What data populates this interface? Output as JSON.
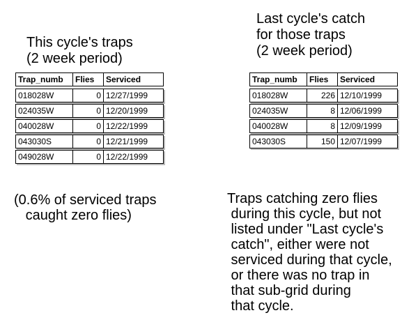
{
  "left": {
    "heading": [
      "This cycle's traps",
      " (2 week period)"
    ],
    "columns": [
      "Trap_numb",
      "Flies",
      "Serviced"
    ],
    "rows": [
      [
        "018028W",
        "0",
        "12/27/1999"
      ],
      [
        "024035W",
        "0",
        "12/20/1999"
      ],
      [
        "040028W",
        "0",
        "12/22/1999"
      ],
      [
        "043030S",
        "0",
        "12/21/1999"
      ],
      [
        "049028W",
        "0",
        "12/22/1999"
      ]
    ],
    "note": [
      "(0.6% of serviced traps",
      "   caught zero flies)"
    ]
  },
  "right": {
    "heading": [
      "Last cycle's catch",
      " for those traps",
      " (2 week period)"
    ],
    "columns": [
      "Trap_numb",
      "Flies",
      "Serviced"
    ],
    "rows": [
      [
        "018028W",
        "226",
        "12/10/1999"
      ],
      [
        "024035W",
        "8",
        "12/06/1999"
      ],
      [
        "040028W",
        "8",
        "12/09/1999"
      ],
      [
        "043030S",
        "150",
        "12/07/1999"
      ]
    ],
    "note": [
      "Traps catching zero flies",
      " during this cycle, but not",
      " listed under \"Last cycle's",
      " catch\", either were not",
      " serviced during that cycle,",
      " or there was no trap in",
      " that sub-grid during",
      " that cycle."
    ]
  }
}
